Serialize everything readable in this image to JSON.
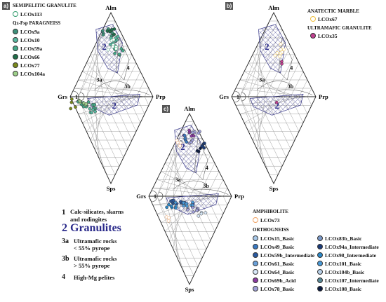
{
  "panels": [
    {
      "tag": "a)",
      "vertices": {
        "top": "Alm",
        "left": "Grs",
        "right": "Prp",
        "bottom": "Sps"
      }
    },
    {
      "tag": "b)",
      "vertices": {
        "top": "Alm",
        "left": "Grs",
        "right": "Prp",
        "bottom": "Sps"
      }
    },
    {
      "tag": "c)",
      "vertices": {
        "top": "Alm",
        "left": "Grs",
        "right": "Prp",
        "bottom": "Sps"
      }
    }
  ],
  "field_labels": {
    "f1": "1",
    "f2": "2",
    "f3a": "3a",
    "f3b": "3b",
    "f4": "4"
  },
  "legend_a": {
    "group1_title": "SEMIPELITIC GRANULITE",
    "group1": [
      {
        "label": "LCOx113",
        "color": "#2e9a6a",
        "style": "hatched"
      }
    ],
    "group2_title": "Qz-Fsp PARAGNEISS",
    "group2": [
      {
        "label": "LCOx9a",
        "color": "#3e8f7a"
      },
      {
        "label": "LCOx10",
        "color": "#58b8a0"
      },
      {
        "label": "LCOx59a",
        "color": "#44a888"
      },
      {
        "label": "LCOx66",
        "color": "#1f6e4a"
      },
      {
        "label": "LCOx77",
        "color": "#7a8a1c"
      },
      {
        "label": "LCOx104a",
        "color": "#9ed08a"
      }
    ]
  },
  "legend_b": {
    "group1_title": "ANATECTIC MARBLE",
    "group1": [
      {
        "label": "LCOx67",
        "color": "#f0c040",
        "style": "open-hatched"
      }
    ],
    "group2_title": "ULTRAMAFIC GRANULITE",
    "group2": [
      {
        "label": "LCOx35",
        "color": "#c04090"
      }
    ]
  },
  "legend_c": {
    "group1_title": "AMPHIBOLITE",
    "group1": [
      {
        "label": "LCOx73",
        "color": "#f0a060",
        "style": "open-hatched"
      }
    ],
    "group2_title": "ORTHOGNEISS",
    "col1": [
      {
        "label": "LCOx15_Basic",
        "color": "#a8c8e8"
      },
      {
        "label": "LCOx49_Basic",
        "color": "#3a78c0"
      },
      {
        "label": "LCOx59b_Intermediate",
        "color": "#2a5aa0"
      },
      {
        "label": "LCOx61_Basic",
        "color": "#6aa0d8"
      },
      {
        "label": "LCOx64_Basic",
        "color": "#d8e8f8"
      },
      {
        "label": "LCOx69b_Acid",
        "color": "#8a3aa0"
      },
      {
        "label": "LCOx78_Basic",
        "color": "#a0a0d8"
      }
    ],
    "col2": [
      {
        "label": "LCOx83b_Basic",
        "color": "#7a98c8"
      },
      {
        "label": "LCOx94a_Intermediate",
        "color": "#1a3a78"
      },
      {
        "label": "LCOx98_Intermediate",
        "color": "#2a88c8"
      },
      {
        "label": "LCOx101_Basic",
        "color": "#4a9ad8"
      },
      {
        "label": "LCOx104b_Basic",
        "color": "#b8d0e8"
      },
      {
        "label": "LCOx107_Intermediate",
        "color": "#5a8a98"
      },
      {
        "label": "LCOx108_Basic",
        "color": "#0a1a40"
      }
    ]
  },
  "key": {
    "k1_num": "1",
    "k1_text1": "Calc-silicates, skarns",
    "k1_text2": "and rodingites",
    "k2_text": "2 Granulites",
    "k3a_num": "3a",
    "k3a_text1": "Ultramafic rocks",
    "k3a_text2": "< 55% pyrope",
    "k3b_num": "3b",
    "k3b_text1": "Ultramafic rocks",
    "k3b_text2": "> 55% pyrope",
    "k4_num": "4",
    "k4_text": "High-Mg pelites"
  },
  "colors": {
    "granulite_field": "#2a2a8a",
    "grid": "#777777"
  }
}
